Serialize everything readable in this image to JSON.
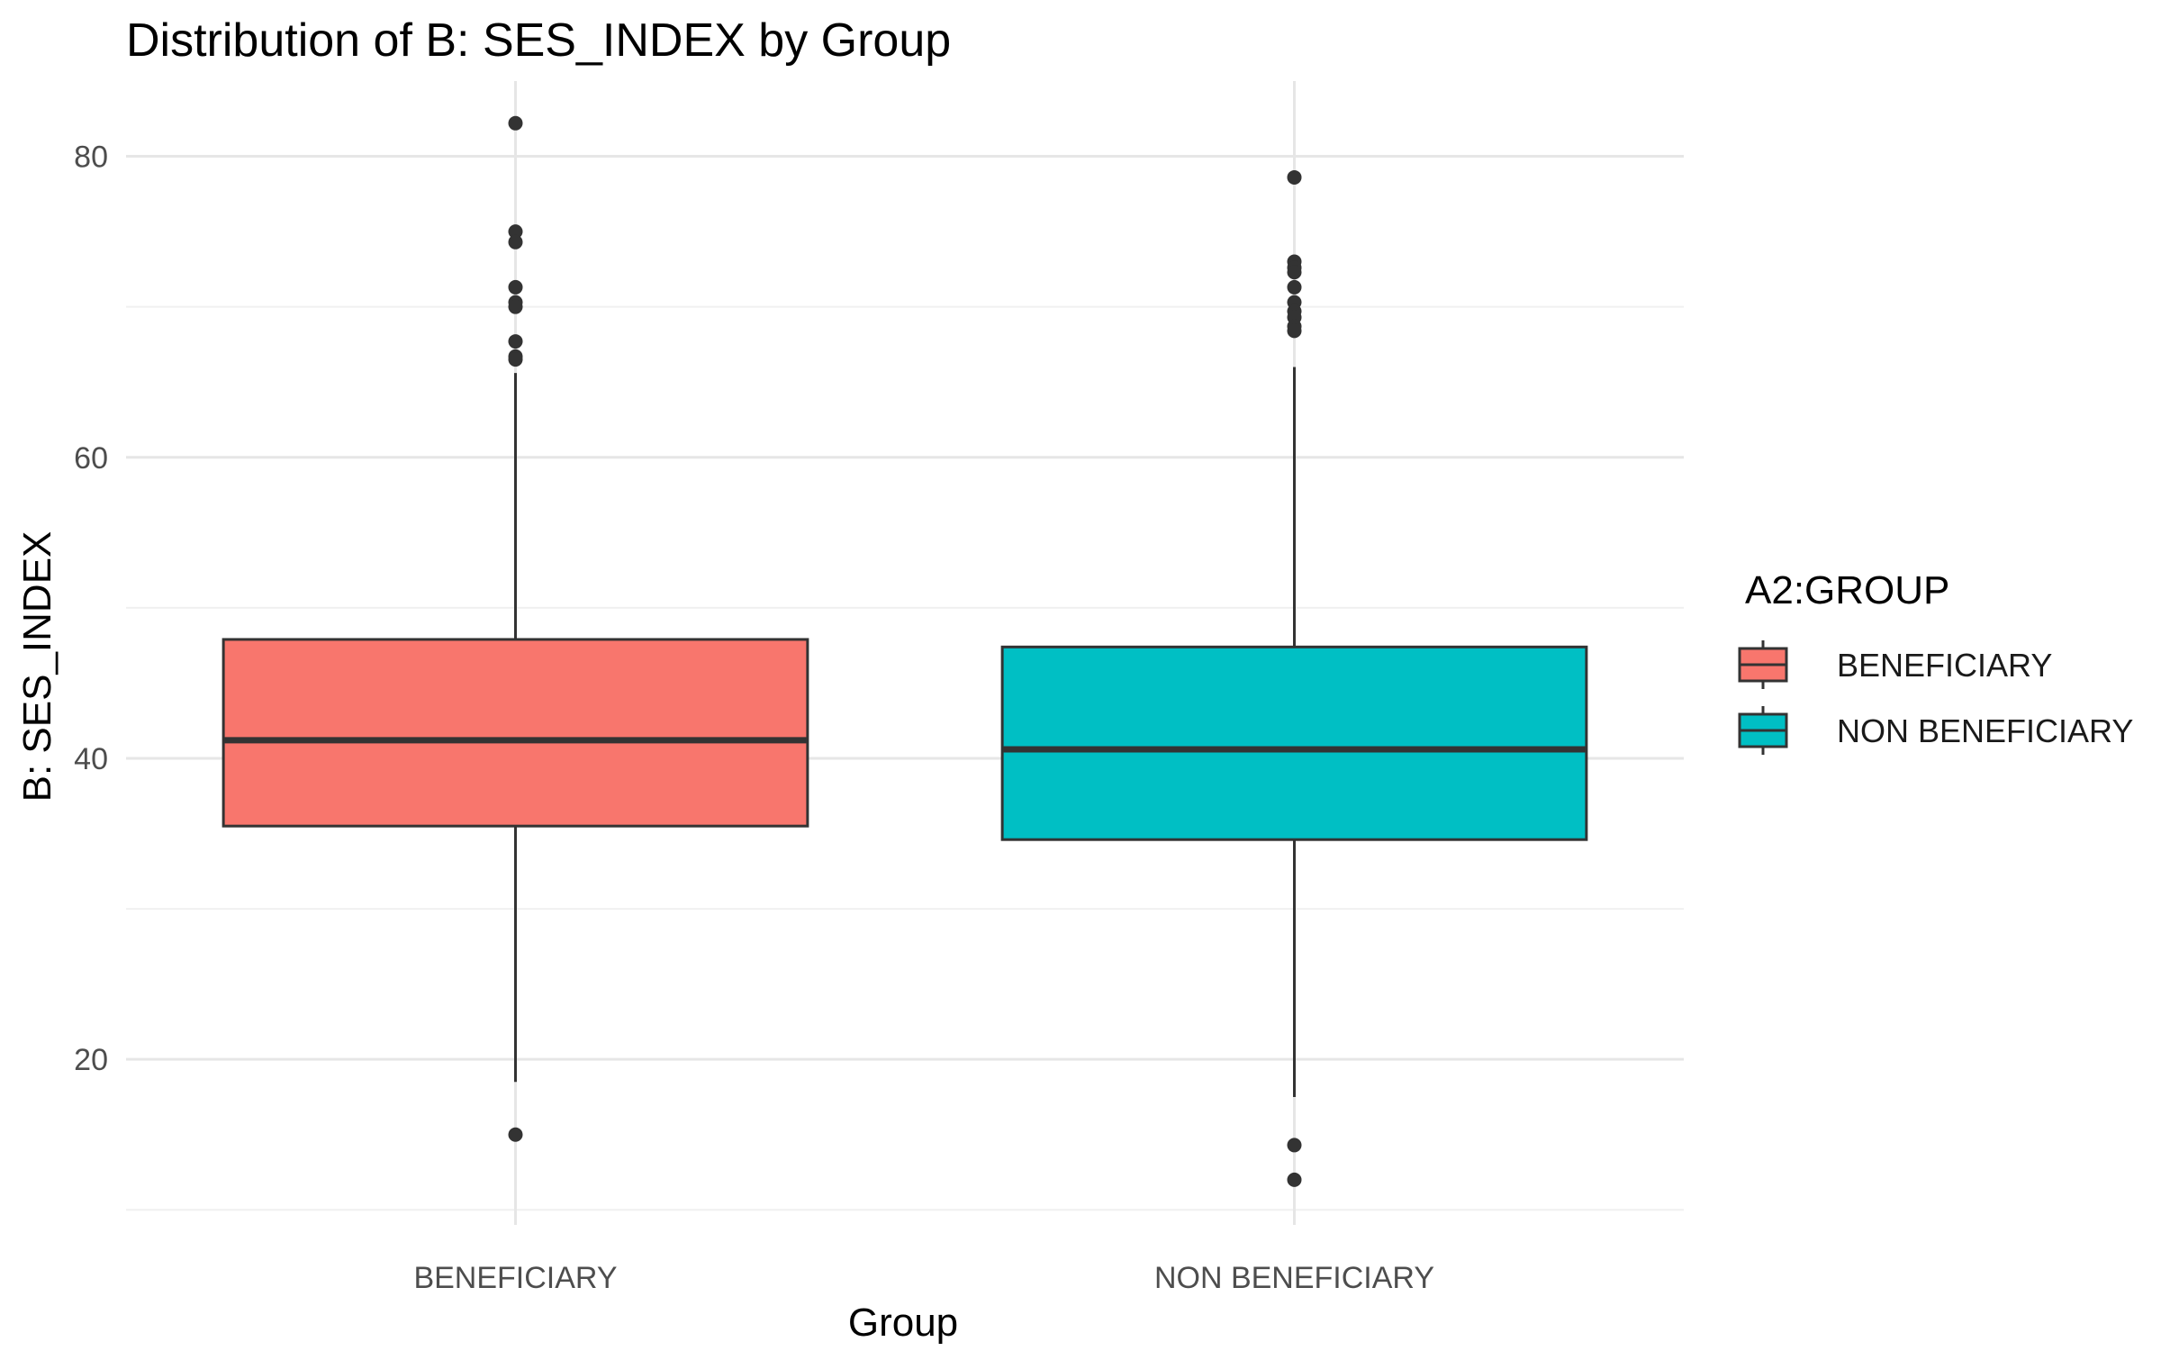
{
  "chart_data": {
    "type": "boxplot",
    "title": "Distribution of B: SES_INDEX by Group",
    "xlabel": "Group",
    "ylabel": "B: SES_INDEX",
    "ylim": [
      9,
      85
    ],
    "yticks": [
      20,
      40,
      60,
      80
    ],
    "yticks_labels": [
      "20",
      "40",
      "60",
      "80"
    ],
    "minor_yticks": [
      10,
      30,
      50,
      70
    ],
    "grid": true,
    "categories": [
      "BENEFICIARY",
      "NON BENEFICIARY"
    ],
    "legend": {
      "title": "A2:GROUP",
      "position": "right",
      "entries": [
        "BENEFICIARY",
        "NON BENEFICIARY"
      ]
    },
    "series": [
      {
        "name": "BENEFICIARY",
        "color": "#F8766D",
        "whisker_low": 18.5,
        "q1": 35.5,
        "median": 41.2,
        "q3": 47.9,
        "whisker_high": 65.6,
        "outliers": [
          82.2,
          75.0,
          74.3,
          71.3,
          70.3,
          70.0,
          67.7,
          66.7,
          66.5,
          15.0
        ]
      },
      {
        "name": "NON BENEFICIARY",
        "color": "#00BFC4",
        "whisker_low": 17.5,
        "q1": 34.6,
        "median": 40.6,
        "q3": 47.4,
        "whisker_high": 66.0,
        "outliers": [
          78.6,
          73.0,
          72.6,
          72.3,
          71.3,
          70.3,
          69.7,
          69.3,
          68.7,
          68.4,
          14.3,
          12.0
        ]
      }
    ]
  }
}
